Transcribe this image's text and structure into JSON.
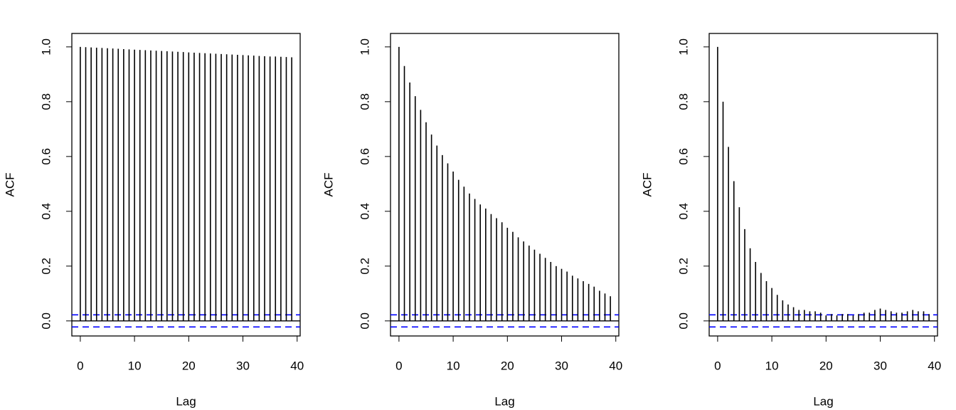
{
  "chart_data": [
    {
      "type": "acf",
      "xlabel": "Lag",
      "ylabel": "ACF",
      "color": "#000000",
      "band_color": "#0000ff",
      "x": [
        0,
        1,
        2,
        3,
        4,
        5,
        6,
        7,
        8,
        9,
        10,
        11,
        12,
        13,
        14,
        15,
        16,
        17,
        18,
        19,
        20,
        21,
        22,
        23,
        24,
        25,
        26,
        27,
        28,
        29,
        30,
        31,
        32,
        33,
        34,
        35,
        36,
        37,
        38,
        39
      ],
      "values": [
        1,
        0.999,
        0.998,
        0.997,
        0.996,
        0.995,
        0.994,
        0.993,
        0.992,
        0.991,
        0.99,
        0.989,
        0.988,
        0.987,
        0.986,
        0.985,
        0.984,
        0.983,
        0.982,
        0.981,
        0.98,
        0.979,
        0.978,
        0.977,
        0.976,
        0.975,
        0.974,
        0.973,
        0.972,
        0.971,
        0.97,
        0.969,
        0.968,
        0.967,
        0.966,
        0.965,
        0.965,
        0.964,
        0.963,
        0.962
      ],
      "conf_band": [
        -0.022,
        0.022
      ],
      "xlim": [
        -1.56,
        40.56
      ],
      "ylim": [
        -0.055,
        1.049
      ],
      "xticks": [
        0,
        10,
        20,
        30,
        40
      ],
      "yticks": [
        {
          "value": 0,
          "label": "0.0"
        },
        0.2,
        0.4,
        0.6,
        0.8,
        {
          "value": 1,
          "label": "1.0"
        }
      ]
    },
    {
      "type": "acf",
      "xlabel": "Lag",
      "ylabel": "ACF",
      "color": "#000000",
      "band_color": "#0000ff",
      "x": [
        0,
        1,
        2,
        3,
        4,
        5,
        6,
        7,
        8,
        9,
        10,
        11,
        12,
        13,
        14,
        15,
        16,
        17,
        18,
        19,
        20,
        21,
        22,
        23,
        24,
        25,
        26,
        27,
        28,
        29,
        30,
        31,
        32,
        33,
        34,
        35,
        36,
        37,
        38,
        39
      ],
      "values": [
        1,
        0.93,
        0.87,
        0.82,
        0.77,
        0.725,
        0.68,
        0.64,
        0.605,
        0.575,
        0.545,
        0.515,
        0.49,
        0.465,
        0.445,
        0.425,
        0.41,
        0.39,
        0.375,
        0.36,
        0.34,
        0.325,
        0.305,
        0.29,
        0.275,
        0.26,
        0.245,
        0.23,
        0.215,
        0.2,
        0.19,
        0.18,
        0.165,
        0.155,
        0.145,
        0.135,
        0.125,
        0.11,
        0.1,
        0.09
      ],
      "conf_band": [
        -0.022,
        0.022
      ],
      "xlim": [
        -1.56,
        40.56
      ],
      "ylim": [
        -0.055,
        1.049
      ],
      "xticks": [
        0,
        10,
        20,
        30,
        40
      ],
      "yticks": [
        {
          "value": 0,
          "label": "0.0"
        },
        0.2,
        0.4,
        0.6,
        0.8,
        {
          "value": 1,
          "label": "1.0"
        }
      ]
    },
    {
      "type": "acf",
      "xlabel": "Lag",
      "ylabel": "ACF",
      "color": "#000000",
      "band_color": "#0000ff",
      "x": [
        0,
        1,
        2,
        3,
        4,
        5,
        6,
        7,
        8,
        9,
        10,
        11,
        12,
        13,
        14,
        15,
        16,
        17,
        18,
        19,
        20,
        21,
        22,
        23,
        24,
        25,
        26,
        27,
        28,
        29,
        30,
        31,
        32,
        33,
        34,
        35,
        36,
        37,
        38,
        39
      ],
      "values": [
        1,
        0.8,
        0.635,
        0.51,
        0.415,
        0.335,
        0.265,
        0.215,
        0.175,
        0.145,
        0.12,
        0.095,
        0.075,
        0.06,
        0.05,
        0.04,
        0.04,
        0.035,
        0.035,
        0.03,
        0.02,
        0.025,
        0.02,
        0.025,
        0.025,
        0.02,
        0.025,
        0.03,
        0.03,
        0.04,
        0.045,
        0.04,
        0.035,
        0.03,
        0.03,
        0.035,
        0.04,
        0.035,
        0.035,
        0.025
      ],
      "conf_band": [
        -0.022,
        0.022
      ],
      "xlim": [
        -1.56,
        40.56
      ],
      "ylim": [
        -0.055,
        1.049
      ],
      "xticks": [
        0,
        10,
        20,
        30,
        40
      ],
      "yticks": [
        {
          "value": 0,
          "label": "0.0"
        },
        0.2,
        0.4,
        0.6,
        0.8,
        {
          "value": 1,
          "label": "1.0"
        }
      ]
    }
  ]
}
